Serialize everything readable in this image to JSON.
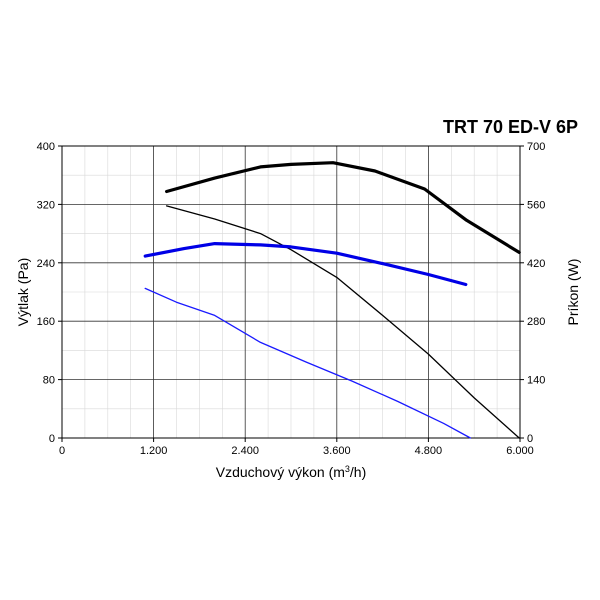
{
  "chart_data": {
    "type": "line",
    "title": "TRT 70 ED-V 6P",
    "xlabel": "Vzduchový výkon (m³/h)",
    "xlabel_main": "Vzduchový výkon (m",
    "xlabel_sup": "3",
    "xlabel_tail": "/h)",
    "ylabel_left": "Výtlak (Pa)",
    "ylabel_right": "Príkon (W)",
    "xlim": [
      0,
      6000
    ],
    "ylim_left": [
      0,
      400
    ],
    "ylim_right": [
      0,
      700
    ],
    "x_ticks": [
      0,
      1200,
      2400,
      3600,
      4800,
      6000
    ],
    "x_tick_labels": [
      "0",
      "1.200",
      "2.400",
      "3.600",
      "4.800",
      "6.000"
    ],
    "y_left_ticks": [
      0,
      80,
      160,
      240,
      320,
      400
    ],
    "y_left_tick_labels": [
      "0",
      "80",
      "160",
      "240",
      "320",
      "400"
    ],
    "y_right_ticks": [
      0,
      140,
      280,
      420,
      560,
      700
    ],
    "y_right_tick_labels": [
      "0",
      "140",
      "280",
      "420",
      "560",
      "700"
    ],
    "grid": true,
    "series": [
      {
        "axis": "left",
        "color": "#000000",
        "weight": "thin",
        "points": [
          [
            1370,
            318
          ],
          [
            2000,
            300
          ],
          [
            2600,
            280
          ],
          [
            3000,
            258
          ],
          [
            3600,
            220
          ],
          [
            4200,
            168
          ],
          [
            4800,
            115
          ],
          [
            5400,
            55
          ],
          [
            5990,
            0
          ]
        ]
      },
      {
        "axis": "right",
        "color": "#000000",
        "weight": "bold",
        "points": [
          [
            1370,
            591
          ],
          [
            2000,
            623
          ],
          [
            2600,
            650
          ],
          [
            3000,
            656
          ],
          [
            3550,
            660
          ],
          [
            4100,
            640
          ],
          [
            4750,
            597
          ],
          [
            5300,
            522
          ],
          [
            5990,
            445
          ]
        ]
      },
      {
        "axis": "left",
        "color": "#1a1aff",
        "weight": "thin",
        "points": [
          [
            1090,
            205
          ],
          [
            1500,
            186
          ],
          [
            2000,
            168
          ],
          [
            2600,
            131
          ],
          [
            3200,
            104
          ],
          [
            3800,
            78
          ],
          [
            4400,
            50
          ],
          [
            5000,
            20
          ],
          [
            5350,
            0
          ]
        ]
      },
      {
        "axis": "right",
        "color": "#0000e6",
        "weight": "bold",
        "points": [
          [
            1090,
            436
          ],
          [
            1600,
            454
          ],
          [
            2000,
            466
          ],
          [
            2600,
            463
          ],
          [
            3000,
            458
          ],
          [
            3600,
            443
          ],
          [
            4200,
            418
          ],
          [
            4800,
            392
          ],
          [
            5290,
            368
          ]
        ]
      }
    ]
  }
}
